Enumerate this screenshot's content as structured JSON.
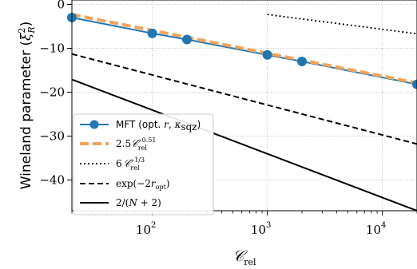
{
  "chart_data": {
    "type": "line",
    "xscale": "log",
    "xlim": [
      20,
      20000
    ],
    "ylim": [
      -47,
      1
    ],
    "grid": "dotted",
    "legend_position": "lower-left",
    "xlabel": "𝒞",
    "xlabel_sub": "rel",
    "ylabel_main": "Wineland parameter (",
    "ylabel_xi": "ξ",
    "ylabel_sup": "2",
    "ylabel_sub": "R",
    "ylabel_close": ")",
    "xticks": [
      {
        "value": 100,
        "base": "10",
        "exp": "2"
      },
      {
        "value": 1000,
        "base": "10",
        "exp": "3"
      },
      {
        "value": 10000,
        "base": "10",
        "exp": "4"
      }
    ],
    "yticks": [
      {
        "value": 0,
        "label": "0"
      },
      {
        "value": -10,
        "label": "−10"
      },
      {
        "value": -20,
        "label": "−20"
      },
      {
        "value": -30,
        "label": "−30"
      },
      {
        "value": -40,
        "label": "−40"
      }
    ],
    "series": [
      {
        "key": "mft",
        "color": "#1f77b4",
        "line": "solid",
        "marker": "circle",
        "x": [
          20,
          100,
          200,
          1000,
          2000,
          20000
        ],
        "y": [
          -3.0,
          -6.6,
          -8.0,
          -11.5,
          -13.0,
          -18.2
        ]
      },
      {
        "key": "fit",
        "color": "#f4a259",
        "line": "dashed",
        "x": [
          20,
          20000
        ],
        "y": [
          -2.3,
          -17.9
        ]
      },
      {
        "key": "cube_root",
        "color": "#000000",
        "line": "dotted",
        "x": [
          1000,
          20000
        ],
        "y": [
          -2.3,
          -6.7
        ]
      },
      {
        "key": "exp",
        "color": "#000000",
        "line": "dashed",
        "x": [
          20,
          20000
        ],
        "y": [
          -11.3,
          -31.8
        ]
      },
      {
        "key": "limit",
        "color": "#000000",
        "line": "solid",
        "x": [
          20,
          20000
        ],
        "y": [
          -17.1,
          -47.0
        ]
      }
    ],
    "legend": [
      {
        "text": "MFT (opt. ",
        "math1": "r",
        "sep": ", ",
        "math2": "κ",
        "math2_sub": "sqz",
        "close": ")"
      },
      {
        "coef": "2.5",
        "sym": "𝒞",
        "sub": "rel",
        "sup": "−0.51"
      },
      {
        "coef": "6",
        "sym": "𝒞",
        "sub": "rel",
        "sup": "−1/3"
      },
      {
        "text": "exp(−2",
        "math1": "r",
        "math1_sub": "opt",
        "close": ")"
      },
      {
        "text": "2/(",
        "math1": "N",
        "close": " + 2)"
      }
    ]
  }
}
